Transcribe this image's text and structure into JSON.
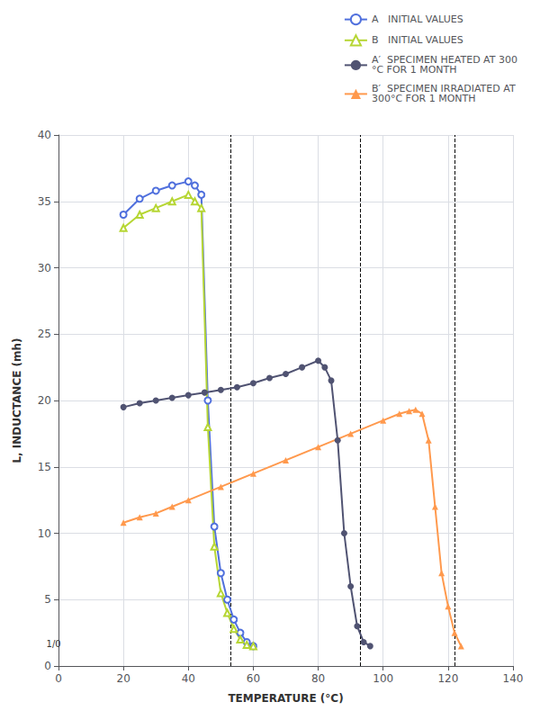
{
  "chart_data": {
    "type": "line",
    "xlabel": "TEMPERATURE (°C)",
    "ylabel": "L, INDUCTANCE (mh)",
    "xlim": [
      0,
      140
    ],
    "ylim": [
      0,
      40
    ],
    "xticks": [
      0,
      20,
      40,
      60,
      80,
      100,
      120,
      140
    ],
    "yticks": [
      0,
      5,
      10,
      15,
      20,
      25,
      30,
      35,
      40
    ],
    "grid": true,
    "legend": "upper right",
    "vlines": [
      53,
      93,
      122
    ],
    "annotations": [
      {
        "text": "1/0",
        "x": -1.5,
        "y": 1.3
      }
    ],
    "series": [
      {
        "name": "A   INITIAL VALUES",
        "marker": "circle_open",
        "x": [
          20,
          25,
          30,
          35,
          40,
          42,
          44,
          46,
          48,
          50,
          52,
          54,
          56,
          58,
          60
        ],
        "values": [
          34.0,
          35.2,
          35.8,
          36.2,
          36.5,
          36.2,
          35.5,
          20.0,
          10.5,
          7.0,
          5.0,
          3.5,
          2.5,
          1.8,
          1.5
        ]
      },
      {
        "name": "B   INITIAL VALUES",
        "marker": "triangle_open",
        "x": [
          20,
          25,
          30,
          35,
          40,
          42,
          44,
          46,
          48,
          50,
          52,
          54,
          56,
          58,
          60
        ],
        "values": [
          33.0,
          34.0,
          34.5,
          35.0,
          35.5,
          35.0,
          34.5,
          18.0,
          9.0,
          5.5,
          4.0,
          2.8,
          2.0,
          1.6,
          1.5
        ]
      },
      {
        "name": "A′  SPECIMEN HEATED AT 300\n°C FOR 1 MONTH",
        "marker": "circle",
        "x": [
          20,
          25,
          30,
          35,
          40,
          45,
          50,
          55,
          60,
          65,
          70,
          75,
          80,
          82,
          84,
          86,
          88,
          90,
          92,
          94,
          96
        ],
        "values": [
          19.5,
          19.8,
          20.0,
          20.2,
          20.4,
          20.6,
          20.8,
          21.0,
          21.3,
          21.7,
          22.0,
          22.5,
          23.0,
          22.5,
          21.5,
          17.0,
          10.0,
          6.0,
          3.0,
          1.8,
          1.5
        ]
      },
      {
        "name": "B′  SPECIMEN IRRADIATED AT\n300°C FOR 1 MONTH",
        "marker": "triangle",
        "x": [
          20,
          25,
          30,
          35,
          40,
          50,
          60,
          70,
          80,
          90,
          100,
          105,
          108,
          110,
          112,
          114,
          116,
          118,
          120,
          122,
          124
        ],
        "values": [
          10.8,
          11.2,
          11.5,
          12.0,
          12.5,
          13.5,
          14.5,
          15.5,
          16.5,
          17.5,
          18.5,
          19.0,
          19.2,
          19.3,
          19.0,
          17.0,
          12.0,
          7.0,
          4.5,
          2.5,
          1.5
        ]
      }
    ]
  }
}
